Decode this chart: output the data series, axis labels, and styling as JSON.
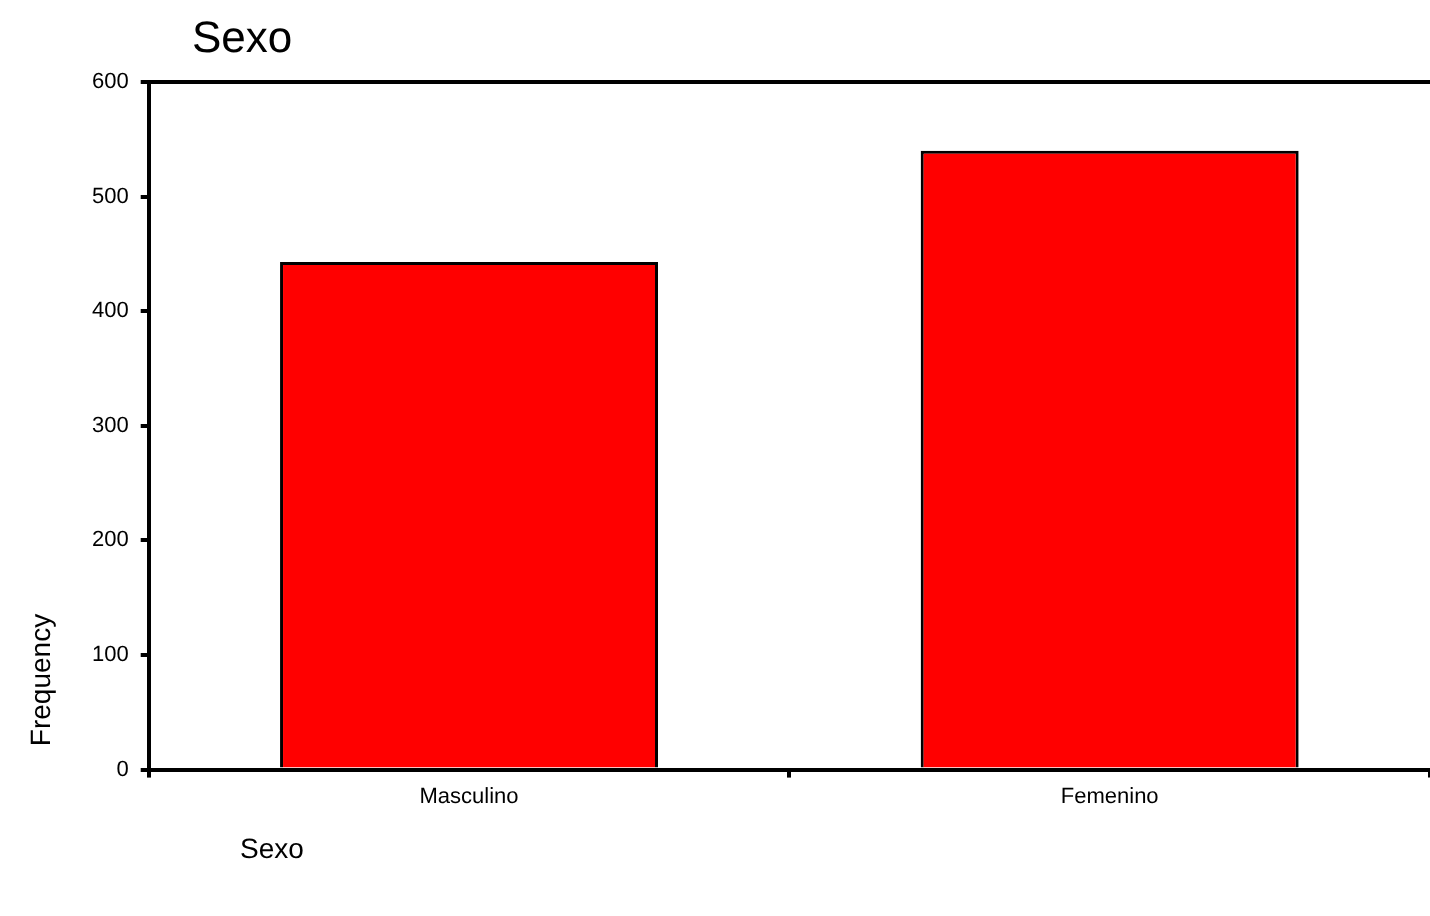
{
  "chart_data": {
    "type": "bar",
    "title": "Sexo",
    "xlabel": "Sexo",
    "ylabel": "Frequency",
    "categories": [
      "Masculino",
      "Femenino"
    ],
    "values": [
      443,
      540
    ],
    "color": "#ff0000",
    "ylim": [
      0,
      600
    ],
    "yticks": [
      0,
      100,
      200,
      300,
      400,
      500,
      600
    ],
    "grid": false,
    "legend": false
  }
}
